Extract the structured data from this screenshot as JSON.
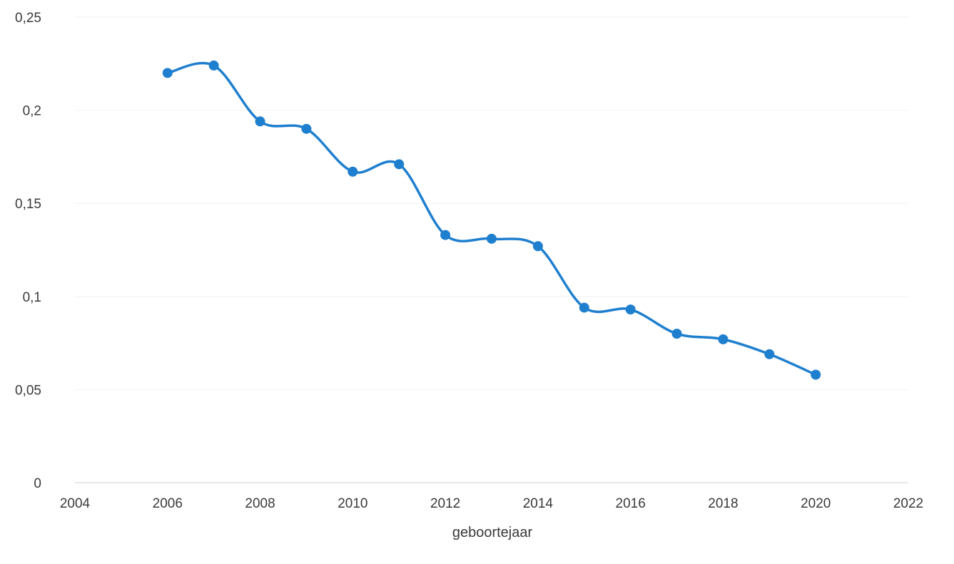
{
  "chart_data": {
    "type": "line",
    "title": "",
    "xlabel": "geboortejaar",
    "ylabel": "",
    "xlim": [
      2004,
      2022
    ],
    "ylim": [
      0,
      0.25
    ],
    "x_ticks": [
      2004,
      2006,
      2008,
      2010,
      2012,
      2014,
      2016,
      2018,
      2020,
      2022
    ],
    "x_tick_labels": [
      "2004",
      "2006",
      "2008",
      "2010",
      "2012",
      "2014",
      "2016",
      "2018",
      "2020",
      "2022"
    ],
    "y_ticks": [
      0,
      0.05,
      0.1,
      0.15,
      0.2,
      0.25
    ],
    "y_tick_labels": [
      "0",
      "0,05",
      "0,1",
      "0,15",
      "0,2",
      "0,25"
    ],
    "grid": true,
    "smooth": true,
    "legend": "none",
    "colors": {
      "series": "#1f7fcf",
      "grid": "#f2f2f2",
      "axis": "#d9d9d9"
    },
    "series": [
      {
        "x": [
          2006,
          2007,
          2008,
          2009,
          2010,
          2011,
          2012,
          2013,
          2014,
          2015,
          2016,
          2017,
          2018,
          2019,
          2020
        ],
        "y": [
          0.22,
          0.224,
          0.194,
          0.19,
          0.167,
          0.171,
          0.133,
          0.131,
          0.127,
          0.094,
          0.093,
          0.08,
          0.077,
          0.069,
          0.058
        ]
      }
    ]
  }
}
